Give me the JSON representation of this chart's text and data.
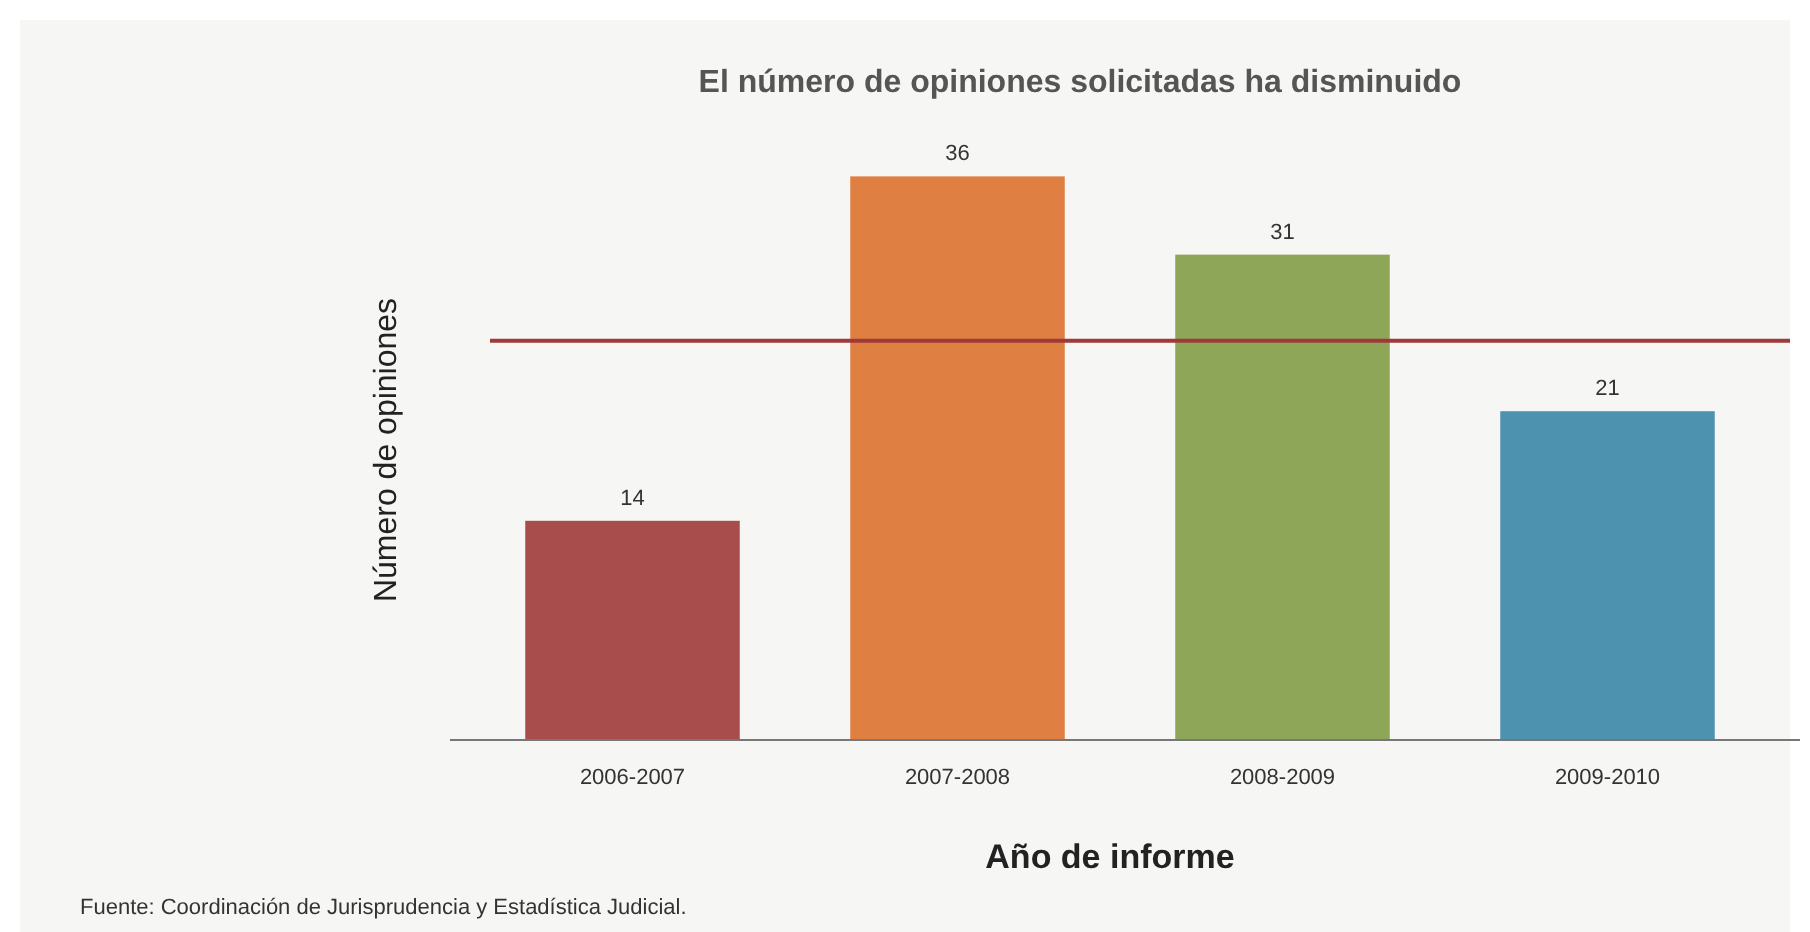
{
  "chart_data": {
    "type": "bar",
    "title": "El número de opiniones solicitadas ha disminuido",
    "xlabel": "Año de informe",
    "ylabel": "Número de opiniones",
    "categories": [
      "2006-2007",
      "2007-2008",
      "2008-2009",
      "2009-2010"
    ],
    "values": [
      14,
      36,
      31,
      21
    ],
    "colors": [
      "#a84d4b",
      "#e07f42",
      "#8ea658",
      "#4d93b0"
    ],
    "data_labels": true,
    "ref_lines": [
      {
        "axis": "y",
        "value": 25.5,
        "color": "#9e3a3a"
      }
    ],
    "annotations": [
      "Fuente: Coordinación de Jurisprudencia y Estadística Judicial."
    ]
  }
}
